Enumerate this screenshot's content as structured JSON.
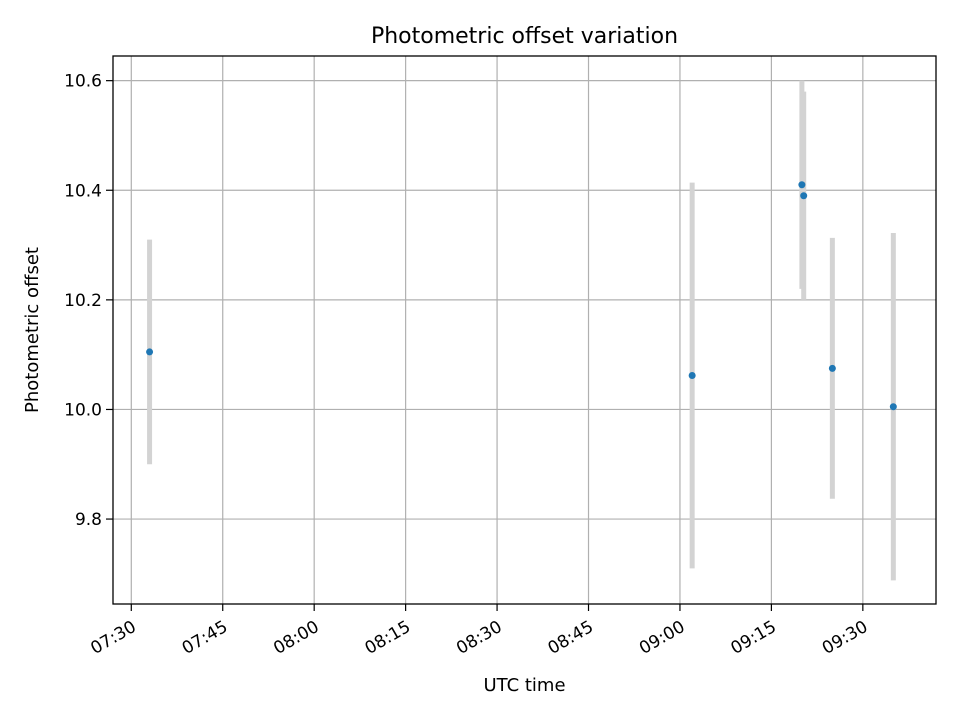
{
  "chart_data": {
    "type": "scatter",
    "title": "Photometric offset variation",
    "xlabel": "UTC time",
    "ylabel": "Photometric offset",
    "x_tick_labels": [
      "07:30",
      "07:45",
      "08:00",
      "08:15",
      "08:30",
      "08:45",
      "09:00",
      "09:15",
      "09:30"
    ],
    "y_tick_labels": [
      "9.8",
      "10.0",
      "10.2",
      "10.4",
      "10.6"
    ],
    "xlim": [
      "07:27",
      "09:42"
    ],
    "ylim": [
      9.645,
      10.645
    ],
    "grid": true,
    "points": [
      {
        "x": "07:33",
        "y": 10.105,
        "yerr": 0.205
      },
      {
        "x": "09:02",
        "y": 10.062,
        "yerr": 0.352
      },
      {
        "x": "09:20",
        "y": 10.41,
        "yerr": 0.19
      },
      {
        "x": "09:20.3",
        "y": 10.39,
        "yerr": 0.19
      },
      {
        "x": "09:25",
        "y": 10.075,
        "yerr": 0.238
      },
      {
        "x": "09:35",
        "y": 10.005,
        "yerr": 0.317
      }
    ],
    "colors": {
      "points": "#1f77b4",
      "errorbars": "#d3d3d3",
      "grid": "#b0b0b0",
      "axes": "#000000"
    }
  }
}
